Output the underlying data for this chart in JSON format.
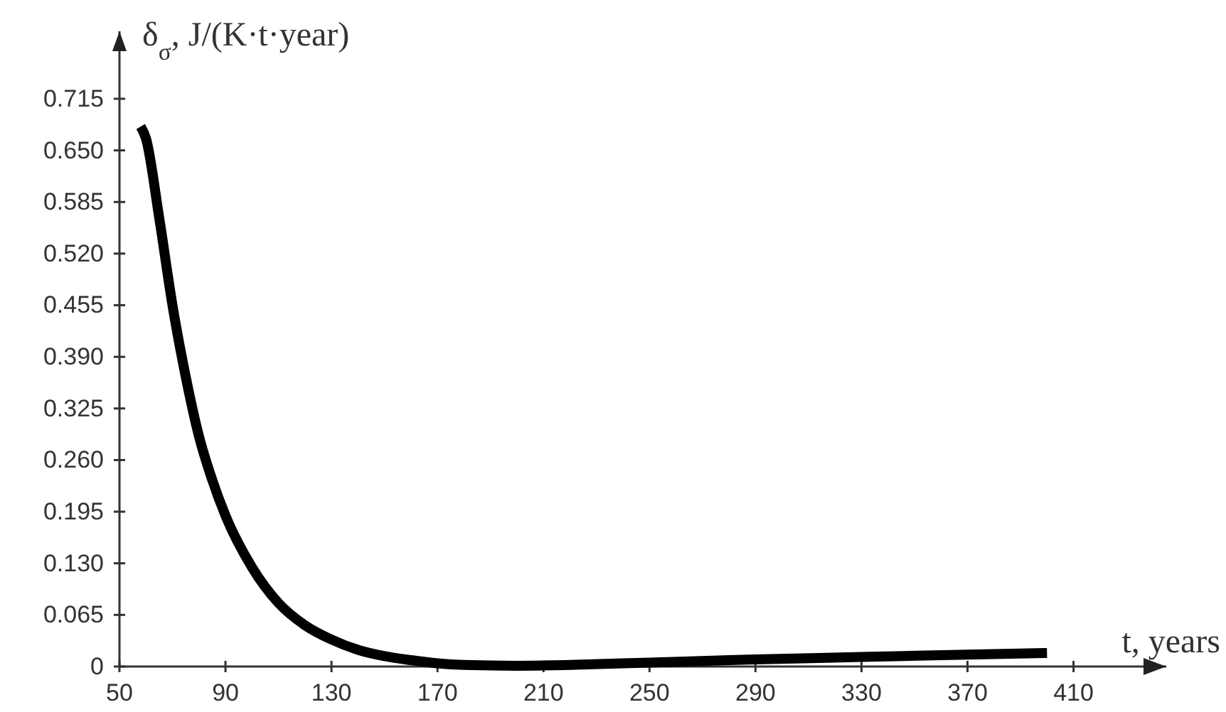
{
  "chart_data": {
    "type": "line",
    "ylabel": "δ$_{σ}$, J/(K·t·year)",
    "xlabel": "t, years",
    "x": [
      58,
      60,
      65,
      70,
      75,
      80,
      85,
      90,
      100,
      110,
      120,
      130,
      140,
      150,
      160,
      170,
      180,
      200,
      220,
      250,
      290,
      330,
      370,
      400
    ],
    "series": [
      {
        "color": "#000000",
        "values": [
          0.68,
          0.665,
          0.565,
          0.455,
          0.365,
          0.29,
          0.235,
          0.19,
          0.125,
          0.08,
          0.052,
          0.034,
          0.021,
          0.013,
          0.008,
          0.004,
          0.002,
          0.001,
          0.002,
          0.005,
          0.009,
          0.012,
          0.015,
          0.017
        ]
      }
    ],
    "xlim": [
      50,
      445
    ],
    "ylim": [
      0,
      0.8
    ],
    "xticks": [
      50,
      90,
      130,
      170,
      210,
      250,
      290,
      330,
      370,
      410
    ],
    "yticks": [
      {
        "value": 0,
        "label": "0"
      },
      0.065,
      {
        "value": 0.13,
        "label": "0.130"
      },
      0.195,
      {
        "value": 0.26,
        "label": "0.260"
      },
      0.325,
      {
        "value": 0.39,
        "label": "0.390"
      },
      0.455,
      {
        "value": 0.52,
        "label": "0.520"
      },
      0.585,
      {
        "value": 0.65,
        "label": "0.650"
      },
      0.715
    ],
    "grid": false,
    "marker": "none",
    "line_style": "solid"
  }
}
